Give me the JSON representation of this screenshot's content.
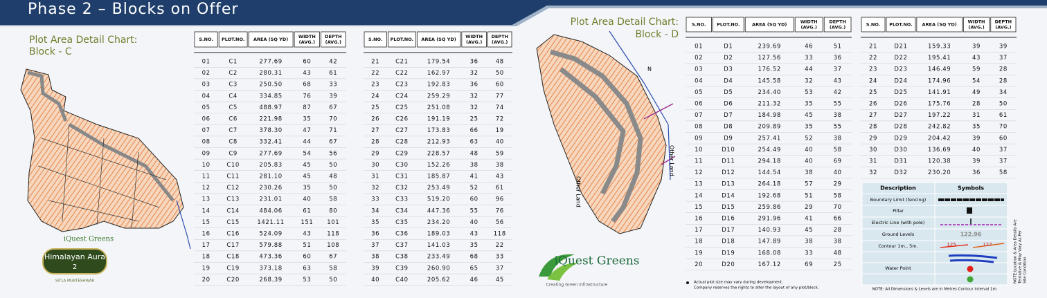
{
  "header": {
    "title": "Phase 2 – Blocks on Offer"
  },
  "blocks": [
    {
      "heading": "Plot Area Detail Chart:",
      "name": "Block - C"
    },
    {
      "heading": "Plot Area Detail Chart:",
      "name": "Block - D"
    }
  ],
  "tables": [
    {
      "header": [
        "S.NO.",
        "PLOT.NO.",
        "AREA (SQ YD)",
        [
          "WIDTH",
          "(AVG.)"
        ],
        [
          "DEPTH",
          "(AVG.)"
        ]
      ],
      "rows": [
        [
          "01",
          "C1",
          "277.69",
          "60",
          "42"
        ],
        [
          "02",
          "C2",
          "280.31",
          "43",
          "61"
        ],
        [
          "03",
          "C3",
          "250.50",
          "68",
          "33"
        ],
        [
          "04",
          "C4",
          "334.85",
          "76",
          "39"
        ],
        [
          "05",
          "C5",
          "488.97",
          "87",
          "67"
        ],
        [
          "06",
          "C6",
          "221.98",
          "35",
          "70"
        ],
        [
          "07",
          "C7",
          "378.30",
          "47",
          "71"
        ],
        [
          "08",
          "C8",
          "332.41",
          "44",
          "67"
        ],
        [
          "09",
          "C9",
          "277.69",
          "54",
          "56"
        ],
        [
          "10",
          "C10",
          "205.83",
          "45",
          "50"
        ],
        [
          "11",
          "C11",
          "281.10",
          "45",
          "48"
        ],
        [
          "12",
          "C12",
          "230.26",
          "35",
          "50"
        ],
        [
          "13",
          "C13",
          "231.01",
          "40",
          "58"
        ],
        [
          "14",
          "C14",
          "484.06",
          "61",
          "80"
        ],
        [
          "15",
          "C15",
          "1421.11",
          "151",
          "101"
        ],
        [
          "16",
          "C16",
          "524.09",
          "43",
          "118"
        ],
        [
          "17",
          "C17",
          "579.88",
          "51",
          "108"
        ],
        [
          "18",
          "C18",
          "473.36",
          "60",
          "67"
        ],
        [
          "19",
          "C19",
          "373.18",
          "63",
          "58"
        ],
        [
          "20",
          "C20",
          "268.39",
          "53",
          "50"
        ]
      ]
    },
    {
      "header": [
        "S.NO.",
        "PLOT.NO.",
        "AREA (SQ YD)",
        [
          "WIDTH",
          "(AVG.)"
        ],
        [
          "DEPTH",
          "(AVG.)"
        ]
      ],
      "rows": [
        [
          "21",
          "C21",
          "179.54",
          "36",
          "48"
        ],
        [
          "22",
          "C22",
          "162.97",
          "32",
          "50"
        ],
        [
          "23",
          "C23",
          "192.83",
          "36",
          "60"
        ],
        [
          "24",
          "C24",
          "259.29",
          "32",
          "77"
        ],
        [
          "25",
          "C25",
          "251.08",
          "32",
          "74"
        ],
        [
          "26",
          "C26",
          "191.19",
          "25",
          "72"
        ],
        [
          "27",
          "C27",
          "173.83",
          "66",
          "19"
        ],
        [
          "28",
          "C28",
          "212.93",
          "63",
          "40"
        ],
        [
          "29",
          "C29",
          "228.57",
          "48",
          "59"
        ],
        [
          "30",
          "C30",
          "152.26",
          "38",
          "38"
        ],
        [
          "31",
          "C31",
          "185.87",
          "41",
          "43"
        ],
        [
          "32",
          "C32",
          "253.49",
          "52",
          "61"
        ],
        [
          "33",
          "C33",
          "519.20",
          "60",
          "96"
        ],
        [
          "34",
          "C34",
          "447.36",
          "55",
          "76"
        ],
        [
          "35",
          "C35",
          "234.20",
          "40",
          "56"
        ],
        [
          "36",
          "C36",
          "189.03",
          "43",
          "118"
        ],
        [
          "37",
          "C37",
          "141.03",
          "35",
          "22"
        ],
        [
          "38",
          "C38",
          "233.49",
          "68",
          "33"
        ],
        [
          "39",
          "C39",
          "260.90",
          "65",
          "37"
        ],
        [
          "40",
          "C40",
          "205.62",
          "46",
          "45"
        ]
      ]
    },
    {
      "header": [
        "S.NO.",
        "PLOT.NO.",
        "AREA (SQ YD)",
        [
          "WIDTH",
          "(AVG.)"
        ],
        [
          "DEPTH",
          "(AVG.)"
        ]
      ],
      "rows": [
        [
          "01",
          "D1",
          "239.69",
          "46",
          "51"
        ],
        [
          "02",
          "D2",
          "127.56",
          "33",
          "36"
        ],
        [
          "03",
          "D3",
          "176.52",
          "44",
          "37"
        ],
        [
          "04",
          "D4",
          "145.58",
          "32",
          "43"
        ],
        [
          "05",
          "D5",
          "234.40",
          "53",
          "42"
        ],
        [
          "06",
          "D6",
          "211.32",
          "35",
          "55"
        ],
        [
          "07",
          "D7",
          "184.98",
          "45",
          "38"
        ],
        [
          "08",
          "D8",
          "209.89",
          "35",
          "55"
        ],
        [
          "09",
          "D9",
          "257.41",
          "52",
          "38"
        ],
        [
          "10",
          "D10",
          "254.49",
          "40",
          "58"
        ],
        [
          "11",
          "D11",
          "294.18",
          "40",
          "69"
        ],
        [
          "12",
          "D12",
          "144.54",
          "38",
          "40"
        ],
        [
          "13",
          "D13",
          "264.18",
          "57",
          "29"
        ],
        [
          "14",
          "D14",
          "192.68",
          "51",
          "58"
        ],
        [
          "15",
          "D15",
          "259.86",
          "29",
          "70"
        ],
        [
          "16",
          "D16",
          "291.96",
          "41",
          "66"
        ],
        [
          "17",
          "D17",
          "140.93",
          "45",
          "28"
        ],
        [
          "18",
          "D18",
          "147.89",
          "38",
          "38"
        ],
        [
          "19",
          "D19",
          "168.08",
          "33",
          "48"
        ],
        [
          "20",
          "D20",
          "167.12",
          "69",
          "25"
        ]
      ]
    },
    {
      "header": [
        "S.NO.",
        "PLOT.NO.",
        "AREA (SQ YD)",
        [
          "WIDTH",
          "(AVG.)"
        ],
        [
          "DEPTH",
          "(AVG.)"
        ]
      ],
      "rows": [
        [
          "21",
          "D21",
          "159.33",
          "39",
          "39"
        ],
        [
          "22",
          "D22",
          "195.41",
          "43",
          "37"
        ],
        [
          "23",
          "D23",
          "146.49",
          "59",
          "28"
        ],
        [
          "24",
          "D24",
          "174.96",
          "54",
          "28"
        ],
        [
          "25",
          "D25",
          "141.91",
          "49",
          "34"
        ],
        [
          "26",
          "D26",
          "175.76",
          "28",
          "50"
        ],
        [
          "27",
          "D27",
          "197.22",
          "31",
          "61"
        ],
        [
          "28",
          "D28",
          "242.82",
          "35",
          "70"
        ],
        [
          "29",
          "D29",
          "204.42",
          "39",
          "60"
        ],
        [
          "30",
          "D30",
          "136.69",
          "40",
          "37"
        ],
        [
          "31",
          "D31",
          "120.38",
          "39",
          "37"
        ],
        [
          "32",
          "D32",
          "230.20",
          "36",
          "58"
        ]
      ]
    }
  ],
  "logos": {
    "brand": "iQuest Greens",
    "project": "Himalayan Aura",
    "phase": "2",
    "location": "SITLA MUKTESHWAR",
    "tagline": "Creating Green Infrastructure"
  },
  "map_labels": {
    "north": "N",
    "other_land": [
      "Other Land",
      "Other Land"
    ]
  },
  "legend": {
    "header": [
      "Description",
      "Symbols"
    ],
    "rows": [
      "Boundary Limit (fencing)",
      "Pillar",
      "Electric Line (with pole)",
      "Ground Levels",
      "Contour 1m., 5m.",
      "Water Point"
    ],
    "ground_level": "122.96",
    "contours": [
      "125",
      "127"
    ]
  },
  "notes": {
    "disclaimer": [
      "Actual plot size may vary during development.",
      "Company reserves the rights to alter the layout of any plot/block."
    ],
    "dimensions": "NOTE: All Dimensions & Levels are in Metres Contour interval 1m.",
    "side": [
      "NOTE:Location & Area Details Are",
      "Tentative & May Vary As Per",
      "Site Condition"
    ]
  }
}
